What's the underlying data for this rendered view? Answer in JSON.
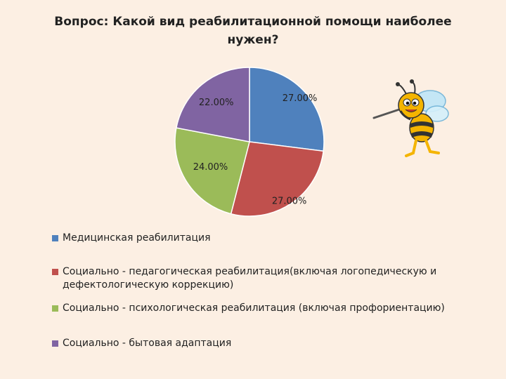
{
  "title": "Вопрос: Какой вид реабилитационной помощи наиболее нужен?",
  "chart_data": {
    "type": "pie",
    "title": "Вопрос: Какой вид реабилитационной помощи наиболее нужен?",
    "categories": [
      "Медицинская реабилитация",
      "Социально - педагогическая реабилитация(включая логопедическую и дефектологическую коррекцию)",
      "Социально - психологическая реабилитация (включая профориентацию)",
      "Социально - бытовая адаптация"
    ],
    "values": [
      27,
      27,
      24,
      22
    ],
    "labels": [
      "27.00%",
      "27.00%",
      "24.00%",
      "22.00%"
    ],
    "colors": [
      "#4f81bd",
      "#c0504d",
      "#9bbb59",
      "#8064a2"
    ],
    "legend": "bottom-left"
  },
  "illustration": {
    "icon": "bee-icon"
  }
}
